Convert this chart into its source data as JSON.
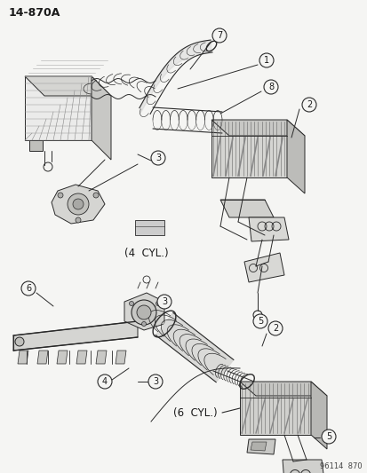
{
  "title": "14-870A",
  "subtitle_top": "(4  CYL.)",
  "subtitle_bot": "(6  CYL.)",
  "watermark": "96114  870",
  "bg_color": "#f5f5f3",
  "line_color": "#2a2a2a",
  "text_color": "#1a1a1a",
  "fig_width": 4.14,
  "fig_height": 5.33,
  "dpi": 100
}
